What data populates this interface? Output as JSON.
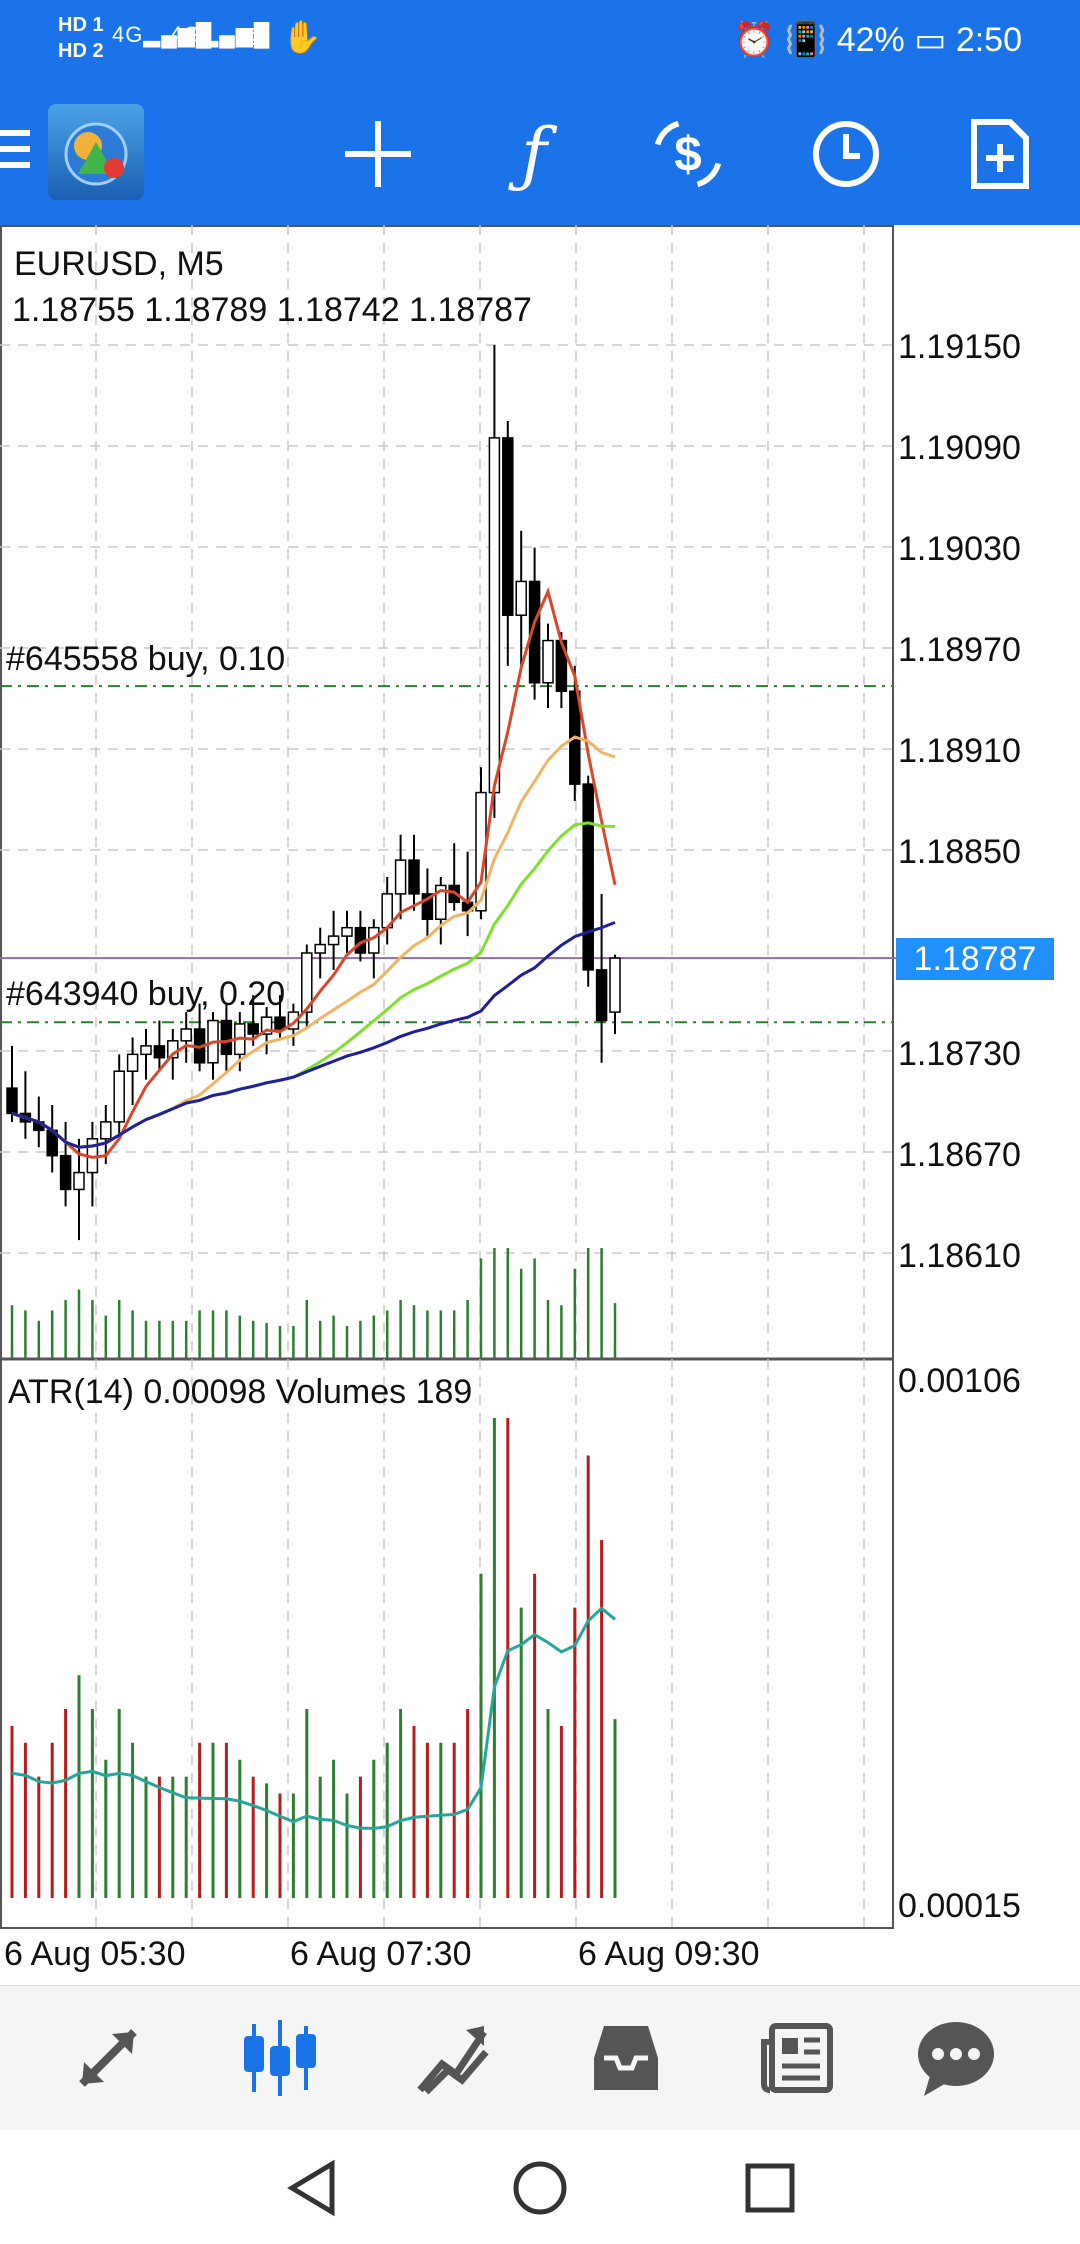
{
  "status_bar": {
    "left_indicators": [
      "HD 1",
      "HD 2"
    ],
    "network_1": "4G",
    "network_2": "4G",
    "battery": "42%",
    "time": "2:50"
  },
  "toolbar": {
    "icons": [
      "menu-icon",
      "app-logo",
      "crosshair-icon",
      "function-icon",
      "currency-exchange-icon",
      "clock-icon",
      "new-order-icon"
    ]
  },
  "chart": {
    "symbol_line": "EURUSD, M5",
    "ohlc_line": "1.18755 1.18789 1.18742 1.18787",
    "current_price": "1.18787",
    "order_1": "#645558 buy, 0.10",
    "order_2": "#643940 buy, 0.20",
    "indicator_line": "ATR(14) 0.00098 Volumes 189",
    "sub_max": "0.00106",
    "sub_min": "0.00015",
    "time_labels": [
      "6 Aug 05:30",
      "6 Aug 07:30",
      "6 Aug 09:30"
    ],
    "price_labels": [
      "1.19150",
      "1.19090",
      "1.19030",
      "1.18970",
      "1.18910",
      "1.18850",
      "1.18730",
      "1.18670",
      "1.18610"
    ]
  },
  "chart_data": {
    "type": "candlestick",
    "symbol": "EURUSD",
    "timeframe": "M5",
    "ylim": [
      1.18585,
      1.19195
    ],
    "x_labels": [
      "6 Aug 05:30",
      "6 Aug 07:30",
      "6 Aug 09:30"
    ],
    "current_price": 1.18787,
    "order_levels": [
      {
        "label": "#645558 buy, 0.10",
        "price": 1.18948
      },
      {
        "label": "#643940 buy, 0.20",
        "price": 1.18749
      }
    ],
    "candles": [
      [
        1.1871,
        1.18735,
        1.1869,
        1.18695
      ],
      [
        1.18695,
        1.1872,
        1.1868,
        1.1869
      ],
      [
        1.1869,
        1.18705,
        1.18675,
        1.18685
      ],
      [
        1.18685,
        1.187,
        1.1866,
        1.1867
      ],
      [
        1.1867,
        1.1869,
        1.1864,
        1.1865
      ],
      [
        1.1865,
        1.1868,
        1.1862,
        1.1866
      ],
      [
        1.1866,
        1.1869,
        1.1864,
        1.1868
      ],
      [
        1.1868,
        1.187,
        1.18665,
        1.1869
      ],
      [
        1.1869,
        1.1873,
        1.1868,
        1.1872
      ],
      [
        1.1872,
        1.1874,
        1.187,
        1.1873
      ],
      [
        1.1873,
        1.18745,
        1.18715,
        1.18735
      ],
      [
        1.18735,
        1.1875,
        1.1872,
        1.18728
      ],
      [
        1.18728,
        1.18745,
        1.18715,
        1.18738
      ],
      [
        1.18738,
        1.18755,
        1.18725,
        1.18745
      ],
      [
        1.18745,
        1.1876,
        1.1872,
        1.18725
      ],
      [
        1.18725,
        1.18755,
        1.18715,
        1.1875
      ],
      [
        1.1875,
        1.1876,
        1.1872,
        1.1873
      ],
      [
        1.1873,
        1.18755,
        1.1872,
        1.18748
      ],
      [
        1.18748,
        1.18765,
        1.18735,
        1.18742
      ],
      [
        1.18742,
        1.18758,
        1.1873,
        1.18752
      ],
      [
        1.18752,
        1.18765,
        1.1874,
        1.18745
      ],
      [
        1.18745,
        1.1876,
        1.18735,
        1.18755
      ],
      [
        1.18755,
        1.18795,
        1.18745,
        1.1879
      ],
      [
        1.1879,
        1.18805,
        1.18775,
        1.18795
      ],
      [
        1.18795,
        1.18815,
        1.1878,
        1.188
      ],
      [
        1.188,
        1.18815,
        1.1879,
        1.18805
      ],
      [
        1.18805,
        1.18815,
        1.18785,
        1.1879
      ],
      [
        1.1879,
        1.1881,
        1.18775,
        1.18805
      ],
      [
        1.18805,
        1.18835,
        1.18795,
        1.18825
      ],
      [
        1.18825,
        1.1886,
        1.1881,
        1.18845
      ],
      [
        1.18845,
        1.1886,
        1.18815,
        1.18825
      ],
      [
        1.18825,
        1.1884,
        1.188,
        1.1881
      ],
      [
        1.1881,
        1.18835,
        1.18795,
        1.1883
      ],
      [
        1.1883,
        1.18855,
        1.18815,
        1.1882
      ],
      [
        1.1882,
        1.1885,
        1.188,
        1.18815
      ],
      [
        1.18815,
        1.189,
        1.1881,
        1.18885
      ],
      [
        1.18885,
        1.1915,
        1.1887,
        1.19095
      ],
      [
        1.19095,
        1.19105,
        1.1896,
        1.1899
      ],
      [
        1.1899,
        1.1904,
        1.1896,
        1.1901
      ],
      [
        1.1901,
        1.1903,
        1.1894,
        1.1895
      ],
      [
        1.1895,
        1.18985,
        1.18935,
        1.18975
      ],
      [
        1.18975,
        1.1898,
        1.18935,
        1.18945
      ],
      [
        1.18945,
        1.1896,
        1.1888,
        1.1889
      ],
      [
        1.1889,
        1.18895,
        1.1877,
        1.1878
      ],
      [
        1.1878,
        1.18825,
        1.18725,
        1.1875
      ],
      [
        1.18755,
        1.18789,
        1.18742,
        1.18787
      ]
    ],
    "sub_window": {
      "title": "ATR(14) 0.00098 Volumes 189",
      "ylim": [
        0.00015,
        0.00106
      ]
    }
  }
}
